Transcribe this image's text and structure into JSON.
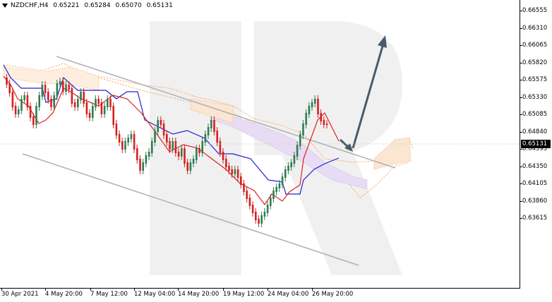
{
  "header": {
    "symbol": "NZDCHF,H4",
    "open": "0.65221",
    "high": "0.65284",
    "low": "0.65070",
    "close": "0.65131"
  },
  "current_price": "0.65131",
  "price_axis": [
    "0.66555",
    "0.66310",
    "0.66065",
    "0.65820",
    "0.65575",
    "0.65330",
    "0.65085",
    "0.64840",
    "0.64595",
    "0.64350",
    "0.64105",
    "0.63860",
    "0.63615"
  ],
  "time_axis": [
    "30 Apr 2021",
    "4 May 20:00",
    "7 May 12:00",
    "12 May 04:00",
    "14 May 20:00",
    "19 May 12:00",
    "24 May 04:00",
    "26 May 20:00"
  ],
  "watermark": "R",
  "colors": {
    "bull": "#2e7d4f",
    "bear": "#d62020",
    "tenkan": "#e02020",
    "kijun": "#2020d0",
    "cloud_a": "#f4a460",
    "cloud_b": "#b8a0d8",
    "channel": "#b0b0b0",
    "arrow": "#4a5a6a"
  }
}
